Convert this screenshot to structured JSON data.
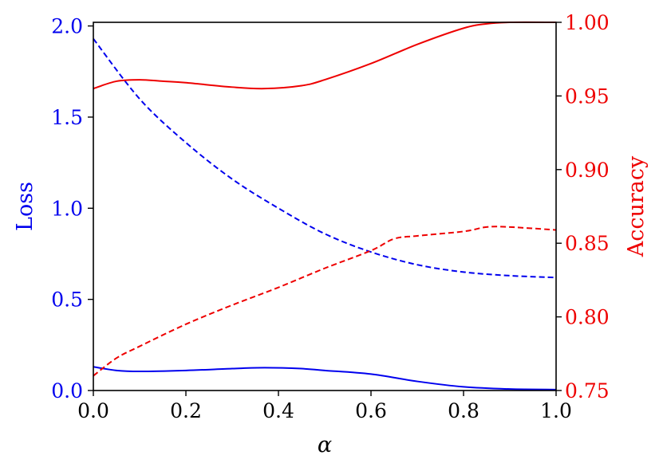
{
  "chart_data": {
    "type": "line",
    "title": "",
    "xlabel": "α",
    "ylabel_left": "Loss",
    "ylabel_right": "Accuracy",
    "xlim": [
      0.0,
      1.0
    ],
    "ylim_left": [
      0.0,
      2.02
    ],
    "ylim_right": [
      0.75,
      1.0
    ],
    "x_ticks": [
      "0.0",
      "0.2",
      "0.4",
      "0.6",
      "0.8",
      "1.0"
    ],
    "y_left_ticks": [
      "0.0",
      "0.5",
      "1.0",
      "1.5",
      "2.0"
    ],
    "y_right_ticks": [
      "0.75",
      "0.80",
      "0.85",
      "0.90",
      "0.95",
      "1.00"
    ],
    "grid": false,
    "legend": "none",
    "colors": {
      "left_axis": "#0000ee",
      "right_axis": "#ee0000"
    },
    "series": [
      {
        "axis": "left",
        "style": "dashed",
        "color": "#0000ee",
        "x": [
          0,
          0.1,
          0.2,
          0.3,
          0.4,
          0.5,
          0.6,
          0.7,
          0.8,
          0.9,
          1.0
        ],
        "y": [
          1.93,
          1.6,
          1.36,
          1.16,
          1.0,
          0.86,
          0.76,
          0.69,
          0.65,
          0.63,
          0.62
        ]
      },
      {
        "axis": "left",
        "style": "solid",
        "color": "#0000ee",
        "x": [
          0,
          0.05,
          0.1,
          0.2,
          0.3,
          0.37,
          0.45,
          0.5,
          0.6,
          0.7,
          0.8,
          0.9,
          1.0
        ],
        "y": [
          0.13,
          0.11,
          0.105,
          0.11,
          0.12,
          0.125,
          0.12,
          0.11,
          0.09,
          0.05,
          0.02,
          0.008,
          0.005
        ]
      },
      {
        "axis": "right",
        "style": "solid",
        "color": "#ee0000",
        "x": [
          0,
          0.05,
          0.1,
          0.15,
          0.2,
          0.3,
          0.37,
          0.45,
          0.5,
          0.6,
          0.7,
          0.8,
          0.85,
          0.9,
          1.0
        ],
        "y": [
          0.955,
          0.96,
          0.961,
          0.96,
          0.959,
          0.956,
          0.955,
          0.957,
          0.961,
          0.972,
          0.985,
          0.996,
          0.999,
          1.0,
          1.0
        ]
      },
      {
        "axis": "right",
        "style": "dashed",
        "color": "#ee0000",
        "x": [
          0,
          0.05,
          0.1,
          0.2,
          0.3,
          0.4,
          0.5,
          0.6,
          0.65,
          0.7,
          0.8,
          0.85,
          0.9,
          1.0
        ],
        "y": [
          0.76,
          0.772,
          0.78,
          0.795,
          0.808,
          0.82,
          0.833,
          0.845,
          0.853,
          0.855,
          0.858,
          0.861,
          0.861,
          0.859
        ]
      }
    ]
  }
}
